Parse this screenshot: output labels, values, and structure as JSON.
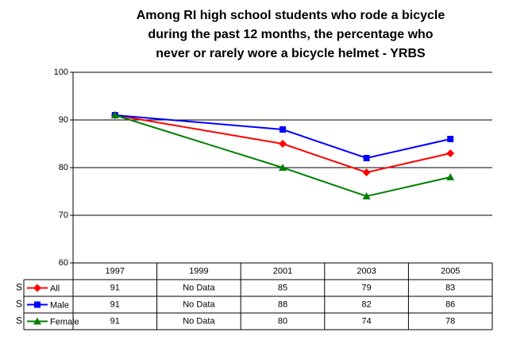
{
  "chart_data": {
    "type": "line",
    "title": [
      "Among RI  high school students who rode a bicycle",
      "during the past 12 months, the percentage who",
      "never or rarely wore a bicycle helmet - YRBS"
    ],
    "categories": [
      "1997",
      "1999",
      "2001",
      "2003",
      "2005"
    ],
    "series": [
      {
        "name": "All",
        "color": "#ff0000",
        "marker": "diamond",
        "values": [
          91,
          null,
          85,
          79,
          83
        ],
        "value_labels": [
          "91",
          "No Data",
          "85",
          "79",
          "83"
        ]
      },
      {
        "name": "Male",
        "color": "#0000ff",
        "marker": "square",
        "values": [
          91,
          null,
          88,
          82,
          86
        ],
        "value_labels": [
          "91",
          "No Data",
          "88",
          "82",
          "86"
        ]
      },
      {
        "name": "Female",
        "color": "#008000",
        "marker": "triangle",
        "values": [
          91,
          null,
          80,
          74,
          78
        ],
        "value_labels": [
          "91",
          "No Data",
          "80",
          "74",
          "78"
        ]
      }
    ],
    "row_marker": "S",
    "span_gaps": true,
    "ylim": [
      60,
      100
    ],
    "yticks": [
      60,
      70,
      80,
      90,
      100
    ],
    "grid": true
  }
}
